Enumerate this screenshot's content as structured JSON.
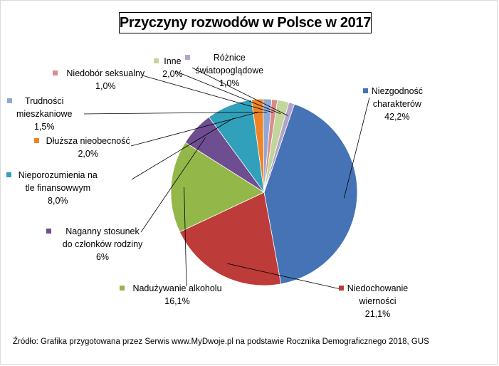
{
  "chart_data": {
    "type": "pie",
    "title": "Przyczyny rozwodów w Polsce w 2017",
    "slices": [
      {
        "label_lines": [
          "Niezgodność",
          "charakterów"
        ],
        "value_text": "42,2%",
        "value": 42.2,
        "color": "#4573b6"
      },
      {
        "label_lines": [
          "Niedochowanie",
          "wierności"
        ],
        "value_text": "21,1%",
        "value": 21.1,
        "color": "#bd3b38"
      },
      {
        "label_lines": [
          "Nadużywanie alkoholu"
        ],
        "value_text": "16,1%",
        "value": 16.1,
        "color": "#93b749"
      },
      {
        "label_lines": [
          "Naganny stosunek",
          "do członków  rodziny"
        ],
        "value_text": "6%",
        "value": 6.0,
        "color": "#6e4d91"
      },
      {
        "label_lines": [
          "Nieporozumienia na",
          "tle finansowwym"
        ],
        "value_text": "8,0%",
        "value": 8.0,
        "color": "#31a0bb"
      },
      {
        "label_lines": [
          "Dłuższa nieobecność"
        ],
        "value_text": "2,0%",
        "value": 2.0,
        "color": "#f08423"
      },
      {
        "label_lines": [
          "Trudności",
          "mieszkaniowe"
        ],
        "value_text": "1,5%",
        "value": 1.5,
        "color": "#8fa9d7"
      },
      {
        "label_lines": [
          "Niedobór seksualny"
        ],
        "value_text": "1,0%",
        "value": 1.0,
        "color": "#d98c8b"
      },
      {
        "label_lines": [
          "Inne"
        ],
        "value_text": "2,0%",
        "value": 2.0,
        "color": "#c2d59a"
      },
      {
        "label_lines": [
          "Różnice",
          "światopoglądowe"
        ],
        "value_text": "1,0%",
        "value": 1.0,
        "color": "#b3a2c9"
      }
    ],
    "source": "Źródło:  Grafika przygotowana przez Serwis  www.MyDwoje.pl  na podstawie Rocznika Demograficznego 2018, GUS"
  }
}
